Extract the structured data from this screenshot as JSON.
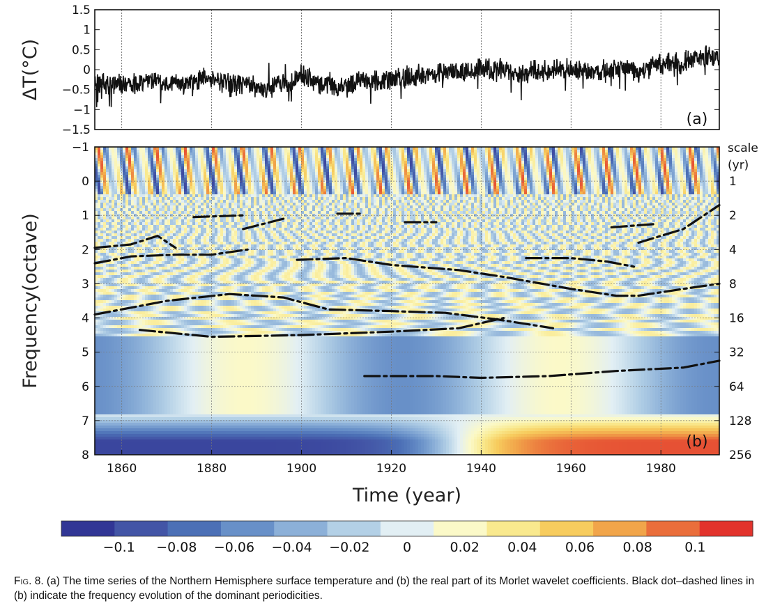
{
  "chart_data": [
    {
      "panel": "a",
      "type": "line",
      "panel_label": "(a)",
      "ylabel": "ΔT(°C)",
      "ylim": [
        -1.5,
        1.5
      ],
      "xlim": [
        1854,
        1993
      ],
      "yticks": [
        "1.5",
        "1",
        "0.5",
        "0",
        "−0.5",
        "−1",
        "−1.5"
      ],
      "ytick_values": [
        1.5,
        1,
        0.5,
        0,
        -0.5,
        -1,
        -1.5
      ],
      "grid_x": [
        1860,
        1880,
        1900,
        1920,
        1940,
        1960,
        1980
      ],
      "series": [
        {
          "x": [
            1854,
            1856,
            1858,
            1860,
            1862,
            1864,
            1866,
            1868,
            1870,
            1872,
            1874,
            1876,
            1878,
            1880,
            1882,
            1884,
            1886,
            1888,
            1890,
            1892,
            1894,
            1896,
            1898,
            1900,
            1902,
            1904,
            1906,
            1908,
            1910,
            1912,
            1914,
            1916,
            1918,
            1920,
            1922,
            1924,
            1926,
            1928,
            1930,
            1932,
            1934,
            1936,
            1938,
            1940,
            1942,
            1944,
            1946,
            1948,
            1950,
            1952,
            1954,
            1956,
            1958,
            1960,
            1962,
            1964,
            1966,
            1968,
            1970,
            1972,
            1974,
            1976,
            1978,
            1980,
            1982,
            1984,
            1986,
            1988,
            1990,
            1992
          ],
          "y": [
            -0.3,
            -0.35,
            -0.4,
            -0.35,
            -0.45,
            -0.3,
            -0.25,
            -0.3,
            -0.35,
            -0.3,
            -0.35,
            -0.3,
            -0.2,
            -0.25,
            -0.3,
            -0.35,
            -0.4,
            -0.35,
            -0.45,
            -0.5,
            -0.4,
            -0.3,
            -0.35,
            -0.1,
            -0.2,
            -0.4,
            -0.35,
            -0.45,
            -0.4,
            -0.35,
            -0.25,
            -0.3,
            -0.3,
            -0.25,
            -0.2,
            -0.2,
            -0.15,
            -0.15,
            -0.1,
            -0.1,
            -0.05,
            -0.05,
            0.0,
            0.05,
            0.0,
            0.05,
            -0.05,
            -0.05,
            -0.1,
            0.0,
            -0.05,
            -0.05,
            0.05,
            0.0,
            0.0,
            -0.1,
            -0.05,
            -0.05,
            0.0,
            0.05,
            -0.05,
            -0.1,
            0.1,
            0.15,
            0.2,
            0.15,
            0.25,
            0.3,
            0.35,
            0.3
          ]
        }
      ]
    },
    {
      "panel": "b",
      "type": "heatmap",
      "panel_label": "(b)",
      "xlabel": "Time (year)",
      "ylabel": "Frequency(octave)",
      "xlim": [
        1854,
        1993
      ],
      "ylim": [
        -1,
        8
      ],
      "xticks": [
        "1860",
        "1880",
        "1900",
        "1920",
        "1940",
        "1960",
        "1980"
      ],
      "xtick_values": [
        1860,
        1880,
        1900,
        1920,
        1940,
        1960,
        1980
      ],
      "yticks": [
        "−1",
        "0",
        "1",
        "2",
        "3",
        "4",
        "5",
        "6",
        "7",
        "8"
      ],
      "ytick_values": [
        -1,
        0,
        1,
        2,
        3,
        4,
        5,
        6,
        7,
        8
      ],
      "right_axis_title": [
        "scale",
        "(yr)"
      ],
      "right_ticks": [
        "1",
        "2",
        "4",
        "8",
        "16",
        "32",
        "64",
        "128",
        "256"
      ],
      "right_tick_octaves": [
        0,
        1,
        2,
        3,
        4,
        5,
        6,
        7,
        8
      ],
      "colorbar": {
        "ticks": [
          "−0.1",
          "−0.08",
          "−0.06",
          "−0.04",
          "−0.02",
          "0",
          "0.02",
          "0.04",
          "0.06",
          "0.08",
          "0.1"
        ],
        "tick_values": [
          -0.1,
          -0.08,
          -0.06,
          -0.04,
          -0.02,
          0,
          0.02,
          0.04,
          0.06,
          0.08,
          0.1
        ],
        "range": [
          -0.12,
          0.12
        ],
        "colors": [
          "#313695",
          "#4355a6",
          "#4c70b6",
          "#6890c8",
          "#8cb0d8",
          "#b3d0e6",
          "#e2eff4",
          "#fbf9c8",
          "#f9e98e",
          "#f7cc5e",
          "#f1a54a",
          "#ea6e3b",
          "#e2332c"
        ]
      },
      "dominant_period_lines": [
        {
          "x": [
            1854,
            1862,
            1868,
            1872
          ],
          "y": [
            1.95,
            1.85,
            1.6,
            1.95
          ]
        },
        {
          "x": [
            1854,
            1862,
            1872,
            1880,
            1888
          ],
          "y": [
            2.4,
            2.2,
            2.15,
            2.15,
            2.0
          ]
        },
        {
          "x": [
            1876,
            1887
          ],
          "y": [
            1.05,
            1.0
          ]
        },
        {
          "x": [
            1887,
            1896
          ],
          "y": [
            1.4,
            1.1
          ]
        },
        {
          "x": [
            1908,
            1913
          ],
          "y": [
            0.95,
            0.95
          ]
        },
        {
          "x": [
            1923,
            1930
          ],
          "y": [
            1.2,
            1.2
          ]
        },
        {
          "x": [
            1899,
            1910,
            1920,
            1935,
            1945,
            1960,
            1970,
            1975,
            1985,
            1993
          ],
          "y": [
            2.3,
            2.25,
            2.45,
            2.6,
            2.8,
            3.15,
            3.35,
            3.35,
            3.15,
            3.0
          ]
        },
        {
          "x": [
            1950,
            1960,
            1968,
            1974
          ],
          "y": [
            2.25,
            2.25,
            2.35,
            2.5
          ]
        },
        {
          "x": [
            1969,
            1979
          ],
          "y": [
            1.35,
            1.25
          ]
        },
        {
          "x": [
            1975,
            1985,
            1993
          ],
          "y": [
            1.8,
            1.4,
            0.7
          ]
        },
        {
          "x": [
            1854,
            1870,
            1884,
            1896,
            1906,
            1920,
            1932,
            1944,
            1956
          ],
          "y": [
            3.9,
            3.5,
            3.3,
            3.4,
            3.75,
            3.8,
            3.85,
            4.05,
            4.3
          ]
        },
        {
          "x": [
            1864,
            1880,
            1900,
            1920,
            1935,
            1945
          ],
          "y": [
            4.35,
            4.55,
            4.5,
            4.4,
            4.3,
            4.0
          ]
        },
        {
          "x": [
            1914,
            1930,
            1940,
            1955,
            1970,
            1985,
            1993
          ],
          "y": [
            5.7,
            5.7,
            5.75,
            5.7,
            5.55,
            5.45,
            5.25
          ]
        }
      ]
    }
  ],
  "caption": {
    "fig_label": "Fig. 8.",
    "text": " (a) The time series of the Northern Hemisphere surface temperature and (b) the real part of its Morlet wavelet coefficients. Black dot–dashed lines in (b) indicate the frequency evolution of the dominant periodicities."
  }
}
